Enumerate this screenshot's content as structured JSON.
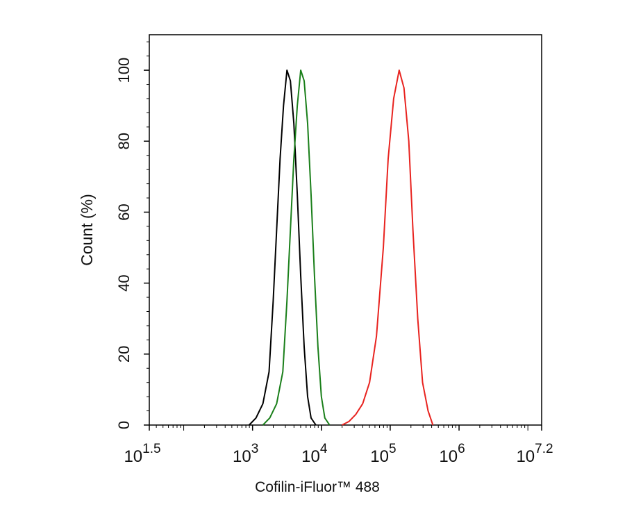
{
  "chart_data": {
    "type": "line",
    "xlabel": "Cofilin-iFluor™ 488",
    "ylabel": "Count  (%)",
    "xscale": "log",
    "xlim": [
      31.6227766,
      15848931.92
    ],
    "xticks": [
      {
        "value": 31.6227766,
        "label": "10",
        "exponent": "1.5"
      },
      {
        "value": 1000,
        "label": "10",
        "exponent": "3"
      },
      {
        "value": 10000,
        "label": "10",
        "exponent": "4"
      },
      {
        "value": 100000,
        "label": "10",
        "exponent": "5"
      },
      {
        "value": 1000000,
        "label": "10",
        "exponent": "6"
      },
      {
        "value": 15848931.92,
        "label": "10",
        "exponent": "7.2"
      }
    ],
    "ylim": [
      0,
      110
    ],
    "yticks": [
      0,
      20,
      40,
      60,
      80,
      100
    ],
    "yminor": 4,
    "series": [
      {
        "color": "#000000",
        "x": [
          891,
          1122,
          1413,
          1738,
          1995,
          2239,
          2512,
          2818,
          3162,
          3548,
          3981,
          4467,
          5012,
          5623,
          6310,
          7079,
          8318
        ],
        "values": [
          0,
          2,
          6,
          15,
          35,
          55,
          75,
          90,
          100,
          97,
          85,
          65,
          42,
          22,
          8,
          2,
          0
        ]
      },
      {
        "color": "#1a7f1a",
        "x": [
          1413,
          1778,
          2239,
          2754,
          3162,
          3548,
          3981,
          4467,
          5012,
          5623,
          6310,
          7079,
          7943,
          8913,
          10000,
          11220,
          13183
        ],
        "values": [
          0,
          2,
          6,
          15,
          35,
          55,
          75,
          90,
          100,
          97,
          85,
          65,
          42,
          22,
          8,
          2,
          0
        ]
      },
      {
        "color": "#e8231f",
        "x": [
          19953,
          25119,
          31623,
          39811,
          50119,
          63096,
          79433,
          93325,
          112202,
          134896,
          158489,
          186209,
          213796,
          251189,
          295121,
          354813,
          416869
        ],
        "values": [
          0,
          1,
          3,
          6,
          12,
          25,
          50,
          75,
          92,
          100,
          95,
          80,
          55,
          30,
          12,
          4,
          0
        ]
      }
    ]
  }
}
